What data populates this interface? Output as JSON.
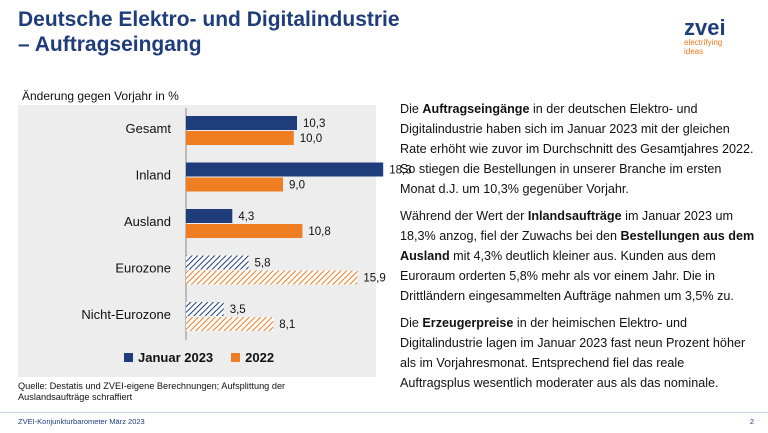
{
  "header": {
    "title": "Deutsche Elektro- und Digitalindustrie",
    "subtitle": "– Auftragseingang"
  },
  "logo": {
    "word": "zvei",
    "tagline_1": "electrifying",
    "tagline_2": "ideas"
  },
  "colors": {
    "navy": "#1f3d7a",
    "orange": "#ef7d22",
    "panel": "#ededed"
  },
  "chart_data": {
    "type": "bar",
    "orientation": "horizontal",
    "ylabel": "Änderung gegen Vorjahr in %",
    "categories": [
      "Gesamt",
      "Inland",
      "Ausland",
      "Eurozone",
      "Nicht-Eurozone"
    ],
    "series": [
      {
        "name": "Januar 2023",
        "color": "#1f3d7a",
        "values": [
          10.3,
          18.3,
          4.3,
          5.8,
          3.5
        ],
        "labels": [
          "10,3",
          "18,3",
          "4,3",
          "5,8",
          "3,5"
        ]
      },
      {
        "name": "2022",
        "color": "#ef7d22",
        "values": [
          10.0,
          9.0,
          10.8,
          15.9,
          8.1
        ],
        "labels": [
          "10,0",
          "9,0",
          "10,8",
          "15,9",
          "8,1"
        ]
      }
    ],
    "hatched_categories": [
      "Eurozone",
      "Nicht-Eurozone"
    ],
    "xlim": [
      0,
      20
    ],
    "grid": false,
    "legend_position": "bottom"
  },
  "source_note": "Quelle: Destatis und ZVEI-eigene Berechnungen; Aufsplittung der Auslandsaufträge schraffiert",
  "body_text": {
    "p1": [
      {
        "t": "Die ",
        "b": false
      },
      {
        "t": "Auftragseingänge",
        "b": true
      },
      {
        "t": " in der deutschen Elektro- und Digitalindustrie haben sich im Januar 2023 mit der gleichen Rate erhöht wie zuvor im Durchschnitt des Gesamtjahres 2022. So stiegen die Bestellungen in unserer Branche im ersten Monat d.J. um 10,3% gegenüber Vorjahr.",
        "b": false
      }
    ],
    "p2": [
      {
        "t": "Während der Wert der ",
        "b": false
      },
      {
        "t": "Inlandsaufträge",
        "b": true
      },
      {
        "t": " im Januar 2023 um 18,3% anzog, fiel der Zuwachs bei den ",
        "b": false
      },
      {
        "t": "Bestellungen aus dem Ausland",
        "b": true
      },
      {
        "t": " mit 4,3% deutlich kleiner aus. Kunden aus dem Euroraum orderten 5,8% mehr als vor einem Jahr. Die in Drittländern eingesammelten Aufträge nahmen um 3,5% zu.",
        "b": false
      }
    ],
    "p3": [
      {
        "t": "Die ",
        "b": false
      },
      {
        "t": "Erzeugerpreise",
        "b": true
      },
      {
        "t": " in der heimischen Elektro- und Digitalindustrie lagen im Januar 2023 fast neun Prozent höher als im Vorjahresmonat. Entsprechend fiel das reale Auftragsplus wesentlich moderater aus als das nominale.",
        "b": false
      }
    ]
  },
  "footer": {
    "left": "ZVEI-Konjunkturbarometer März 2023",
    "page": "2"
  }
}
